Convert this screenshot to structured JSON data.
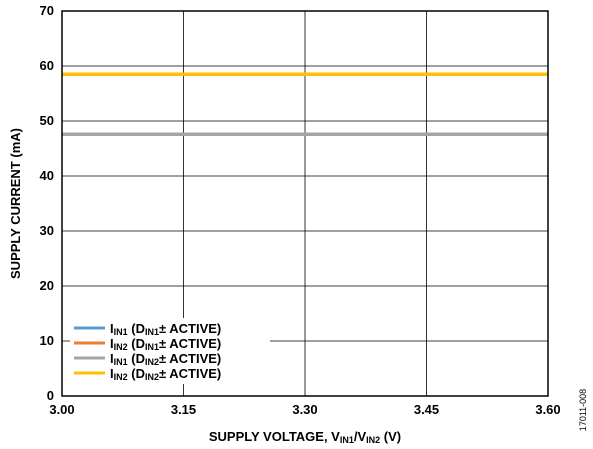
{
  "chart_data": {
    "type": "line",
    "title": "",
    "xlabel": {
      "main": "SUPPLY VOLTAGE, V",
      "sub1": "IN1",
      "mid": "/V",
      "sub2": "IN2",
      "end": " (V)"
    },
    "ylabel": "SUPPLY CURRENT (mA)",
    "xlim": [
      3.0,
      3.6
    ],
    "ylim": [
      0,
      70
    ],
    "x_ticks": [
      "3.00",
      "3.15",
      "3.30",
      "3.45",
      "3.60"
    ],
    "y_ticks": [
      "0",
      "10",
      "20",
      "30",
      "40",
      "50",
      "60",
      "70"
    ],
    "grid": true,
    "legend_position": "lower-left",
    "series": [
      {
        "label_parts": [
          [
            "I",
            ""
          ],
          [
            "IN1",
            "sub"
          ],
          [
            " (D",
            ""
          ],
          [
            "IN1",
            "sub"
          ],
          [
            "± ACTIVE)",
            ""
          ]
        ],
        "color": "#5B9BD5",
        "x": [
          3.0,
          3.6
        ],
        "y": [
          47.6,
          47.6
        ]
      },
      {
        "label_parts": [
          [
            "I",
            ""
          ],
          [
            "IN2",
            "sub"
          ],
          [
            " (D",
            ""
          ],
          [
            "IN1",
            "sub"
          ],
          [
            "± ACTIVE)",
            ""
          ]
        ],
        "color": "#ED7D31",
        "x": [
          3.0,
          3.6
        ],
        "y": [
          58.5,
          58.5
        ]
      },
      {
        "label_parts": [
          [
            "I",
            ""
          ],
          [
            "IN1",
            "sub"
          ],
          [
            " (D",
            ""
          ],
          [
            "IN2",
            "sub"
          ],
          [
            "± ACTIVE)",
            ""
          ]
        ],
        "color": "#A5A5A5",
        "x": [
          3.0,
          3.6
        ],
        "y": [
          47.6,
          47.6
        ]
      },
      {
        "label_parts": [
          [
            "I",
            ""
          ],
          [
            "IN2",
            "sub"
          ],
          [
            " (D",
            ""
          ],
          [
            "IN2",
            "sub"
          ],
          [
            "± ACTIVE)",
            ""
          ]
        ],
        "color": "#FFC000",
        "x": [
          3.0,
          3.6
        ],
        "y": [
          58.5,
          58.5
        ]
      }
    ]
  },
  "figure_id": "17011-008"
}
